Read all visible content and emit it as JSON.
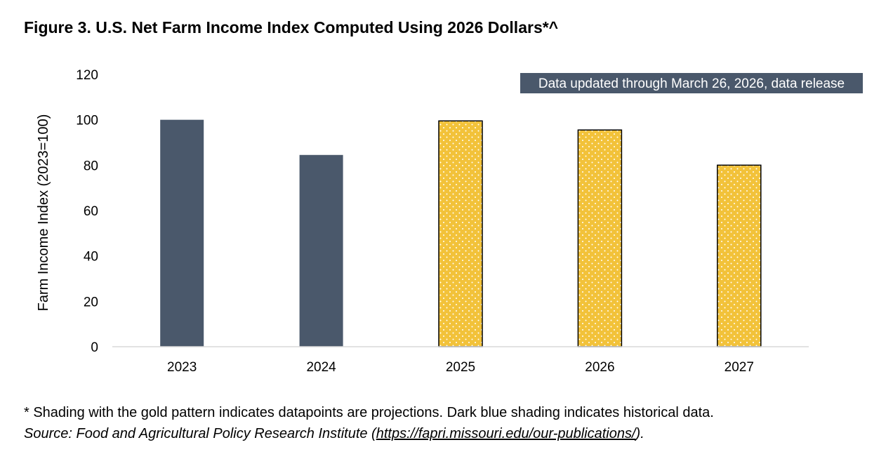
{
  "figure": {
    "title": "Figure 3. U.S. Net Farm Income Index Computed Using 2026 Dollars*^"
  },
  "colors": {
    "historical": "#4a586b",
    "projection": "#f2c23a",
    "projection_dots": "#ffffff",
    "axis": "#d9d9d9",
    "badge_bg": "#4a586b",
    "badge_text": "#ffffff"
  },
  "chart_data": {
    "type": "bar",
    "title": "",
    "xlabel": "",
    "ylabel": "Farm Income Index (2023=100)",
    "ylim": [
      0,
      120
    ],
    "yticks": [
      0,
      20,
      40,
      60,
      80,
      100,
      120
    ],
    "categories": [
      "2023",
      "2024",
      "2025",
      "2026",
      "2027"
    ],
    "values": [
      100,
      84.5,
      99.5,
      95.5,
      80
    ],
    "kinds": [
      "historical",
      "historical",
      "projection",
      "projection",
      "projection"
    ],
    "annotation": "Data updated through March 26, 2026, data release",
    "grid": false,
    "legend": "none"
  },
  "notes": {
    "footnote": "* Shading with the gold pattern indicates datapoints are projections. Dark blue shading indicates historical data.",
    "source_prefix": "Source: Food and Agricultural Policy Research Institute (",
    "source_link": "https://fapri.missouri.edu/our-publications/",
    "source_suffix": ")."
  }
}
